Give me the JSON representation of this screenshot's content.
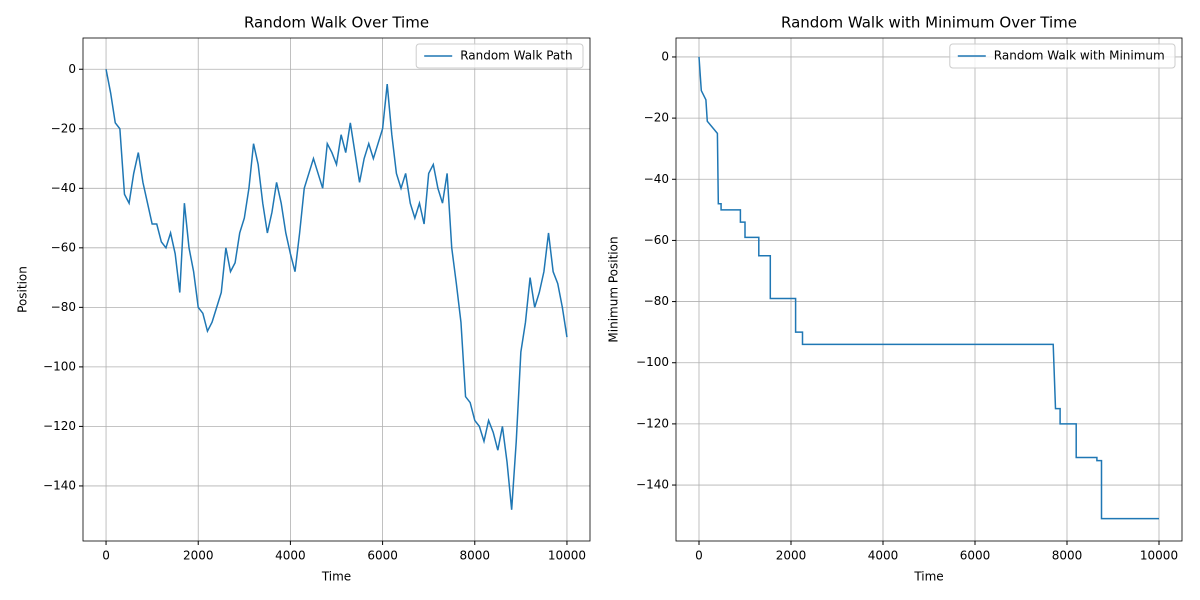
{
  "chart_data": [
    {
      "type": "line",
      "title": "Random Walk Over Time",
      "xlabel": "Time",
      "ylabel": "Position",
      "x": [
        0,
        100,
        200,
        300,
        400,
        500,
        600,
        700,
        800,
        900,
        1000,
        1100,
        1200,
        1300,
        1400,
        1500,
        1600,
        1700,
        1800,
        1900,
        2000,
        2100,
        2200,
        2300,
        2400,
        2500,
        2600,
        2700,
        2800,
        2900,
        3000,
        3100,
        3200,
        3300,
        3400,
        3500,
        3600,
        3700,
        3800,
        3900,
        4000,
        4100,
        4200,
        4300,
        4400,
        4500,
        4600,
        4700,
        4800,
        4900,
        5000,
        5100,
        5200,
        5300,
        5400,
        5500,
        5600,
        5700,
        5800,
        5900,
        6000,
        6100,
        6200,
        6300,
        6400,
        6500,
        6600,
        6700,
        6800,
        6900,
        7000,
        7100,
        7200,
        7300,
        7400,
        7500,
        7600,
        7700,
        7800,
        7900,
        8000,
        8100,
        8200,
        8300,
        8400,
        8500,
        8600,
        8700,
        8800,
        8900,
        9000,
        9100,
        9200,
        9300,
        9400,
        9500,
        9600,
        9700,
        9800,
        9900,
        10000
      ],
      "series": [
        {
          "name": "Random Walk Path",
          "color": "#1f77b4",
          "values": [
            0,
            -8,
            -18,
            -20,
            -42,
            -45,
            -35,
            -28,
            -38,
            -45,
            -52,
            -52,
            -58,
            -60,
            -55,
            -62,
            -75,
            -45,
            -60,
            -68,
            -80,
            -82,
            -88,
            -85,
            -80,
            -75,
            -60,
            -68,
            -65,
            -55,
            -50,
            -40,
            -25,
            -32,
            -45,
            -55,
            -48,
            -38,
            -45,
            -55,
            -62,
            -68,
            -55,
            -40,
            -35,
            -30,
            -35,
            -40,
            -25,
            -28,
            -32,
            -22,
            -28,
            -18,
            -28,
            -38,
            -30,
            -25,
            -30,
            -25,
            -20,
            -5,
            -22,
            -35,
            -40,
            -35,
            -45,
            -50,
            -45,
            -52,
            -35,
            -32,
            -40,
            -45,
            -35,
            -60,
            -72,
            -85,
            -110,
            -112,
            -118,
            -120,
            -125,
            -118,
            -122,
            -128,
            -120,
            -132,
            -148,
            -125,
            -95,
            -85,
            -70,
            -80,
            -75,
            -68,
            -55,
            -68,
            -72,
            -80,
            -90
          ]
        }
      ],
      "xlim": [
        -500,
        10500
      ],
      "xticks": [
        0,
        2000,
        4000,
        6000,
        8000,
        10000
      ],
      "ylim": [
        -158.5,
        10.5
      ],
      "yticks": [
        {
          "value": -140,
          "label": "−140"
        },
        {
          "value": -120,
          "label": "−120"
        },
        {
          "value": -100,
          "label": "−100"
        },
        {
          "value": -80,
          "label": "−80"
        },
        {
          "value": -60,
          "label": "−60"
        },
        {
          "value": -40,
          "label": "−40"
        },
        {
          "value": -20,
          "label": "−20"
        },
        0
      ],
      "grid": true,
      "legend": "upper-right"
    },
    {
      "type": "line",
      "title": "Random Walk with Minimum Over Time",
      "xlabel": "Time",
      "ylabel": "Minimum Position",
      "x": [
        0,
        50,
        50,
        150,
        150,
        180,
        180,
        400,
        420,
        480,
        480,
        900,
        900,
        1000,
        1000,
        1300,
        1300,
        1550,
        1550,
        2100,
        2100,
        2250,
        2250,
        7700,
        7750,
        7850,
        7850,
        8200,
        8200,
        8650,
        8650,
        8750,
        8750,
        10000
      ],
      "series": [
        {
          "name": "Random Walk with Minimum",
          "color": "#1f77b4",
          "values": [
            0,
            -11,
            -11,
            -14,
            -14,
            -21,
            -21,
            -25,
            -48,
            -48,
            -50,
            -50,
            -54,
            -54,
            -59,
            -59,
            -65,
            -65,
            -79,
            -79,
            -90,
            -90,
            -94,
            -94,
            -115,
            -115,
            -120,
            -120,
            -131,
            -131,
            -132,
            -132,
            -151,
            -151
          ]
        }
      ],
      "xlim": [
        -500,
        10500
      ],
      "xticks": [
        0,
        2000,
        4000,
        6000,
        8000,
        10000
      ],
      "ylim": [
        -158.3,
        6.2
      ],
      "yticks": [
        {
          "value": -140,
          "label": "−140"
        },
        {
          "value": -120,
          "label": "−120"
        },
        {
          "value": -100,
          "label": "−100"
        },
        {
          "value": -80,
          "label": "−80"
        },
        {
          "value": -60,
          "label": "−60"
        },
        {
          "value": -40,
          "label": "−40"
        },
        {
          "value": -20,
          "label": "−20"
        },
        0
      ],
      "grid": true,
      "legend": "upper-right"
    }
  ]
}
